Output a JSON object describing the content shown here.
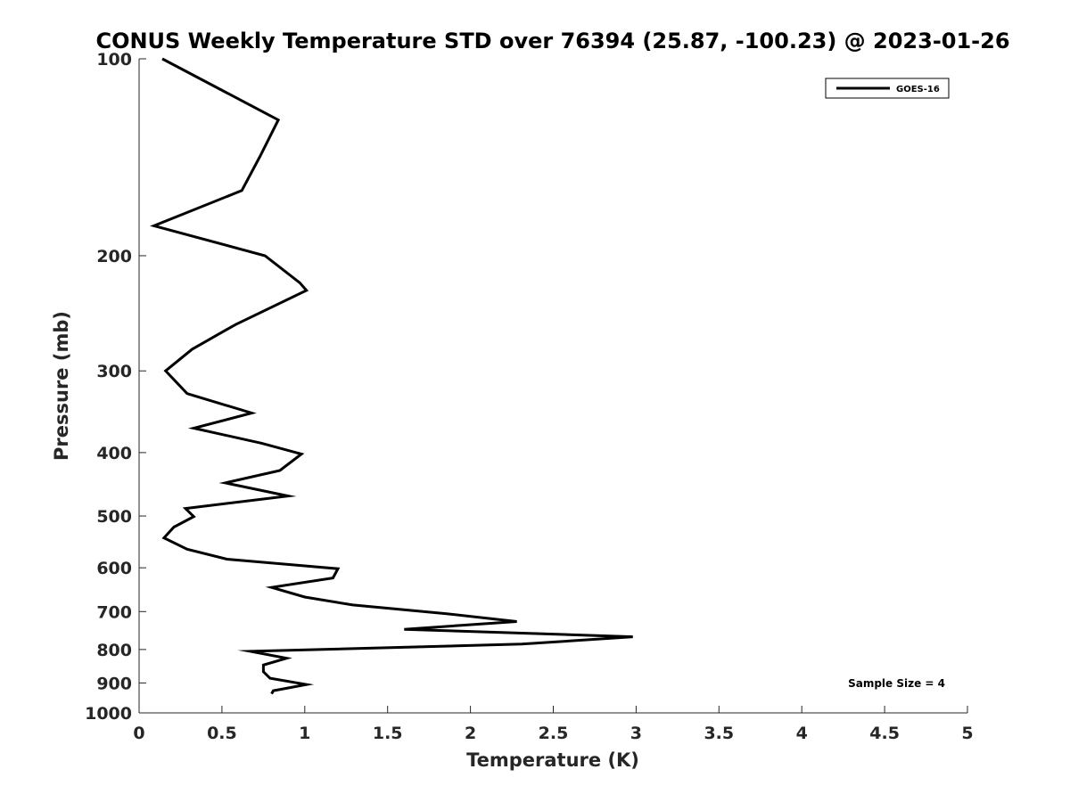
{
  "chart_data": {
    "type": "line",
    "title": "CONUS Weekly Temperature STD over 76394 (25.87, -100.23) @ 2023-01-26",
    "xlabel": "Temperature (K)",
    "ylabel": "Pressure (mb)",
    "xlim": [
      0,
      5
    ],
    "ylim": [
      100,
      1000
    ],
    "yscale": "log",
    "y_reversed": true,
    "grid": false,
    "legend_position": "top-right",
    "x_ticks": [
      "0",
      "0.5",
      "1",
      "1.5",
      "2",
      "2.5",
      "3",
      "3.5",
      "4",
      "4.5",
      "5"
    ],
    "y_ticks": [
      "100",
      "200",
      "300",
      "400",
      "500",
      "600",
      "700",
      "800",
      "900",
      "1000"
    ],
    "line_color": "#000000",
    "series": [
      {
        "name": "GOES-16",
        "points": [
          [
            0.14,
            100
          ],
          [
            0.84,
            124
          ],
          [
            0.73,
            141
          ],
          [
            0.62,
            159
          ],
          [
            0.09,
            180
          ],
          [
            0.76,
            200
          ],
          [
            0.97,
            220
          ],
          [
            1.01,
            226
          ],
          [
            0.58,
            255
          ],
          [
            0.32,
            278
          ],
          [
            0.16,
            300
          ],
          [
            0.29,
            325
          ],
          [
            0.68,
            348
          ],
          [
            0.33,
            367
          ],
          [
            0.74,
            387
          ],
          [
            0.98,
            402
          ],
          [
            0.85,
            426
          ],
          [
            0.52,
            445
          ],
          [
            0.9,
            466
          ],
          [
            0.28,
            487
          ],
          [
            0.33,
            501
          ],
          [
            0.21,
            520
          ],
          [
            0.15,
            540
          ],
          [
            0.29,
            562
          ],
          [
            0.53,
            582
          ],
          [
            1.2,
            602
          ],
          [
            1.17,
            622
          ],
          [
            0.8,
            643
          ],
          [
            1.0,
            665
          ],
          [
            1.29,
            684
          ],
          [
            1.85,
            705
          ],
          [
            2.28,
            725
          ],
          [
            1.6,
            745
          ],
          [
            2.98,
            765
          ],
          [
            2.31,
            785
          ],
          [
            0.67,
            805
          ],
          [
            0.89,
            825
          ],
          [
            0.75,
            845
          ],
          [
            0.75,
            865
          ],
          [
            0.79,
            885
          ],
          [
            1.01,
            905
          ],
          [
            0.81,
            925
          ],
          [
            0.8,
            935
          ]
        ]
      }
    ],
    "annotation": "Sample Size = 4"
  }
}
